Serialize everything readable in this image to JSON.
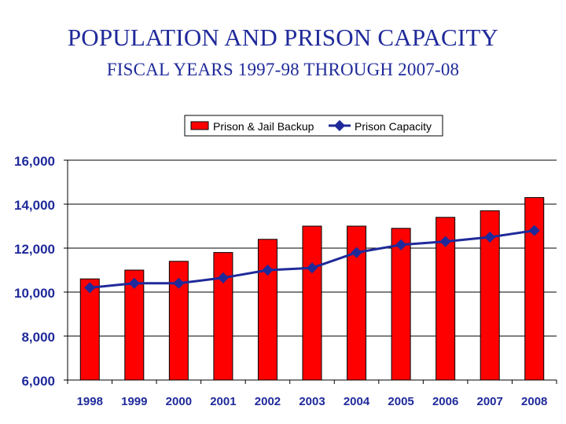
{
  "title": "POPULATION AND PRISON CAPACITY",
  "subtitle": "FISCAL YEARS 1997-98 THROUGH 2007-08",
  "colors": {
    "bars": "#ff0000",
    "bar_edge": "#000000",
    "line": "#1f2a9a",
    "text": "#1f2a9a"
  },
  "chart_data": {
    "type": "bar",
    "categories": [
      "1998",
      "1999",
      "2000",
      "2001",
      "2002",
      "2003",
      "2004",
      "2005",
      "2006",
      "2007",
      "2008"
    ],
    "series": [
      {
        "name": "Prison & Jail Backup",
        "type": "bar",
        "values": [
          10600,
          11000,
          11400,
          11800,
          12400,
          13000,
          13000,
          12900,
          13400,
          13700,
          14300
        ]
      },
      {
        "name": "Prison Capacity",
        "type": "line",
        "values": [
          10200,
          10400,
          10400,
          10650,
          11000,
          11100,
          11800,
          12150,
          12300,
          12500,
          12800
        ]
      }
    ],
    "ylim": [
      6000,
      16000
    ],
    "yticks": [
      "6,000",
      "8,000",
      "10,000",
      "12,000",
      "14,000",
      "16,000"
    ],
    "ytick_values": [
      6000,
      8000,
      10000,
      12000,
      14000,
      16000
    ],
    "legend": "top-right",
    "grid": true
  }
}
